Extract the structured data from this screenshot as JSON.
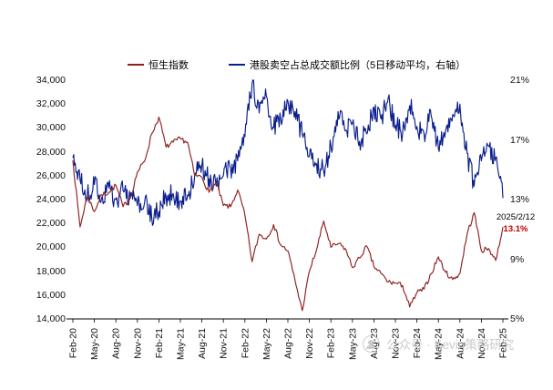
{
  "chart_data": {
    "type": "line",
    "title": "",
    "xlabel": "",
    "ylabel": "",
    "months": 61,
    "x_label_step": 3,
    "x_labels": [
      "Feb-20",
      "May-20",
      "Aug-20",
      "Nov-20",
      "Feb-21",
      "May-21",
      "Aug-21",
      "Nov-21",
      "Feb-22",
      "May-22",
      "Aug-22",
      "Nov-22",
      "Feb-23",
      "May-23",
      "Aug-23",
      "Nov-23",
      "Feb-24",
      "May-24",
      "Aug-24",
      "Nov-24",
      "Feb-25"
    ],
    "left_axis": {
      "min": 14000,
      "max": 34000,
      "tick_labels": [
        "14,000",
        "16,000",
        "18,000",
        "20,000",
        "22,000",
        "24,000",
        "26,000",
        "28,000",
        "30,000",
        "32,000",
        "34,000"
      ]
    },
    "right_axis": {
      "min": 5,
      "max": 21,
      "tick_labels": [
        "5%",
        "9%",
        "13%",
        "17%",
        "21%"
      ]
    },
    "series": [
      {
        "name": "恒生指数",
        "axis": "left",
        "color": "#8E1F1F",
        "jitter": 220,
        "subdiv": 6,
        "values": [
          27300,
          21700,
          24300,
          23000,
          24400,
          24600,
          25200,
          23400,
          24100,
          26300,
          27200,
          29500,
          30900,
          28400,
          28800,
          29100,
          28800,
          26000,
          25900,
          24600,
          25400,
          23500,
          23400,
          24800,
          22700,
          18800,
          21100,
          20700,
          21900,
          20200,
          19700,
          17200,
          14700,
          18000,
          19800,
          22200,
          20000,
          20300,
          19900,
          18300,
          19100,
          20100,
          18400,
          17800,
          17100,
          17000,
          16800,
          15000,
          16200,
          16500,
          17800,
          19200,
          17900,
          17300,
          17800,
          21100,
          22900,
          19700,
          19900,
          18900,
          21700
        ]
      },
      {
        "name": "港股卖空占总成交额比例（5日移动平均，右轴）",
        "axis": "right",
        "color": "#0A1E8C",
        "jitter": 0.75,
        "subdiv": 9,
        "values": [
          15.8,
          14.3,
          13.2,
          14.0,
          13.1,
          13.8,
          13.0,
          13.6,
          13.2,
          12.6,
          12.8,
          11.8,
          12.2,
          13.2,
          13.4,
          12.9,
          13.3,
          14.6,
          15.3,
          14.4,
          13.9,
          14.6,
          15.1,
          15.6,
          17.2,
          20.8,
          18.8,
          19.9,
          17.8,
          18.4,
          19.6,
          18.9,
          17.4,
          15.9,
          15.4,
          14.9,
          16.6,
          18.9,
          17.6,
          18.1,
          16.9,
          17.4,
          19.2,
          18.4,
          19.8,
          18.0,
          17.4,
          19.3,
          17.9,
          17.4,
          18.6,
          16.4,
          17.6,
          18.7,
          19.4,
          16.1,
          13.9,
          15.6,
          16.6,
          15.8,
          13.1
        ]
      }
    ],
    "annotation": {
      "date": "2025/2/12",
      "value": "13.1%",
      "color": "#C00000"
    },
    "legend_position": "top",
    "grid": "off"
  },
  "watermark": {
    "text": "公众号 · Kevin策略研究"
  }
}
